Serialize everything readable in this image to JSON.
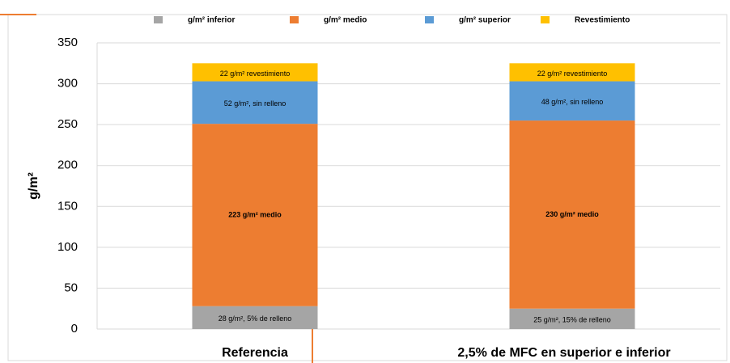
{
  "chart_data": {
    "type": "stacked_bar",
    "y_label": "g/m²",
    "categories": [
      "Referencia",
      "2,5% de MFC en superior e inferior"
    ],
    "series": [
      {
        "name": "g/m² inferior",
        "color": "#a5a5a5",
        "values": [
          28,
          25
        ],
        "value_labels": [
          "28 g/m², 5% de relleno",
          "25 g/m², 15% de relleno"
        ]
      },
      {
        "name": "g/m² medio",
        "color": "#ed7d31",
        "values": [
          223,
          230
        ],
        "value_labels": [
          "223 g/m² medio",
          "230 g/m² medio"
        ]
      },
      {
        "name": "g/m² superior",
        "color": "#5b9bd5",
        "values": [
          52,
          48
        ],
        "value_labels": [
          "52 g/m², sin relleno",
          "48 g/m², sin relleno"
        ]
      },
      {
        "name": "Revestimiento",
        "color": "#ffc000",
        "values": [
          22,
          22
        ],
        "value_labels": [
          "22 g/m² revestimiento",
          "22 g/m² revestimiento"
        ]
      }
    ],
    "ylim": [
      0,
      350
    ],
    "yticks": [
      0,
      50,
      100,
      150,
      200,
      250,
      300,
      350
    ],
    "grid": true,
    "legend": "top"
  }
}
